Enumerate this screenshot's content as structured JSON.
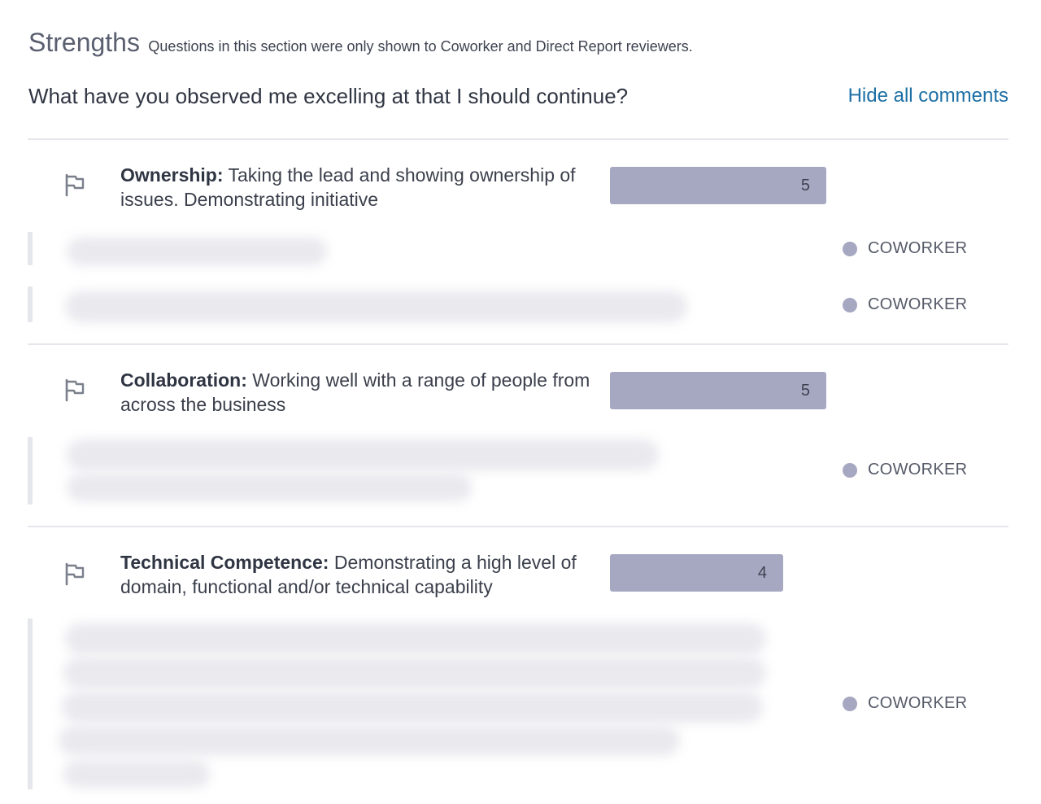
{
  "section": {
    "title": "Strengths",
    "subtitle": "Questions in this section were only shown to Coworker and Direct Report reviewers."
  },
  "question": "What have you observed me excelling at that I should continue?",
  "hide_comments_label": "Hide all comments",
  "bar_max": 5,
  "competencies": [
    {
      "name": "Ownership:",
      "description": "Taking the lead and showing ownership of issues. Demonstrating initiative",
      "score": 5,
      "comments": [
        {
          "reviewer": "COWORKER"
        },
        {
          "reviewer": "COWORKER"
        }
      ]
    },
    {
      "name": "Collaboration:",
      "description": "Working well with a range of people from across the business",
      "score": 5,
      "comments": [
        {
          "reviewer": "COWORKER"
        }
      ]
    },
    {
      "name": "Technical Competence:",
      "description": "Demonstrating a high level of domain, functional and/or technical capability",
      "score": 4,
      "comments": [
        {
          "reviewer": "COWORKER"
        }
      ]
    }
  ],
  "icons": {
    "flag": "flag-icon"
  },
  "colors": {
    "bar": "#a6a8c2",
    "link": "#1d6fa5",
    "divider": "#e6e7ec"
  }
}
